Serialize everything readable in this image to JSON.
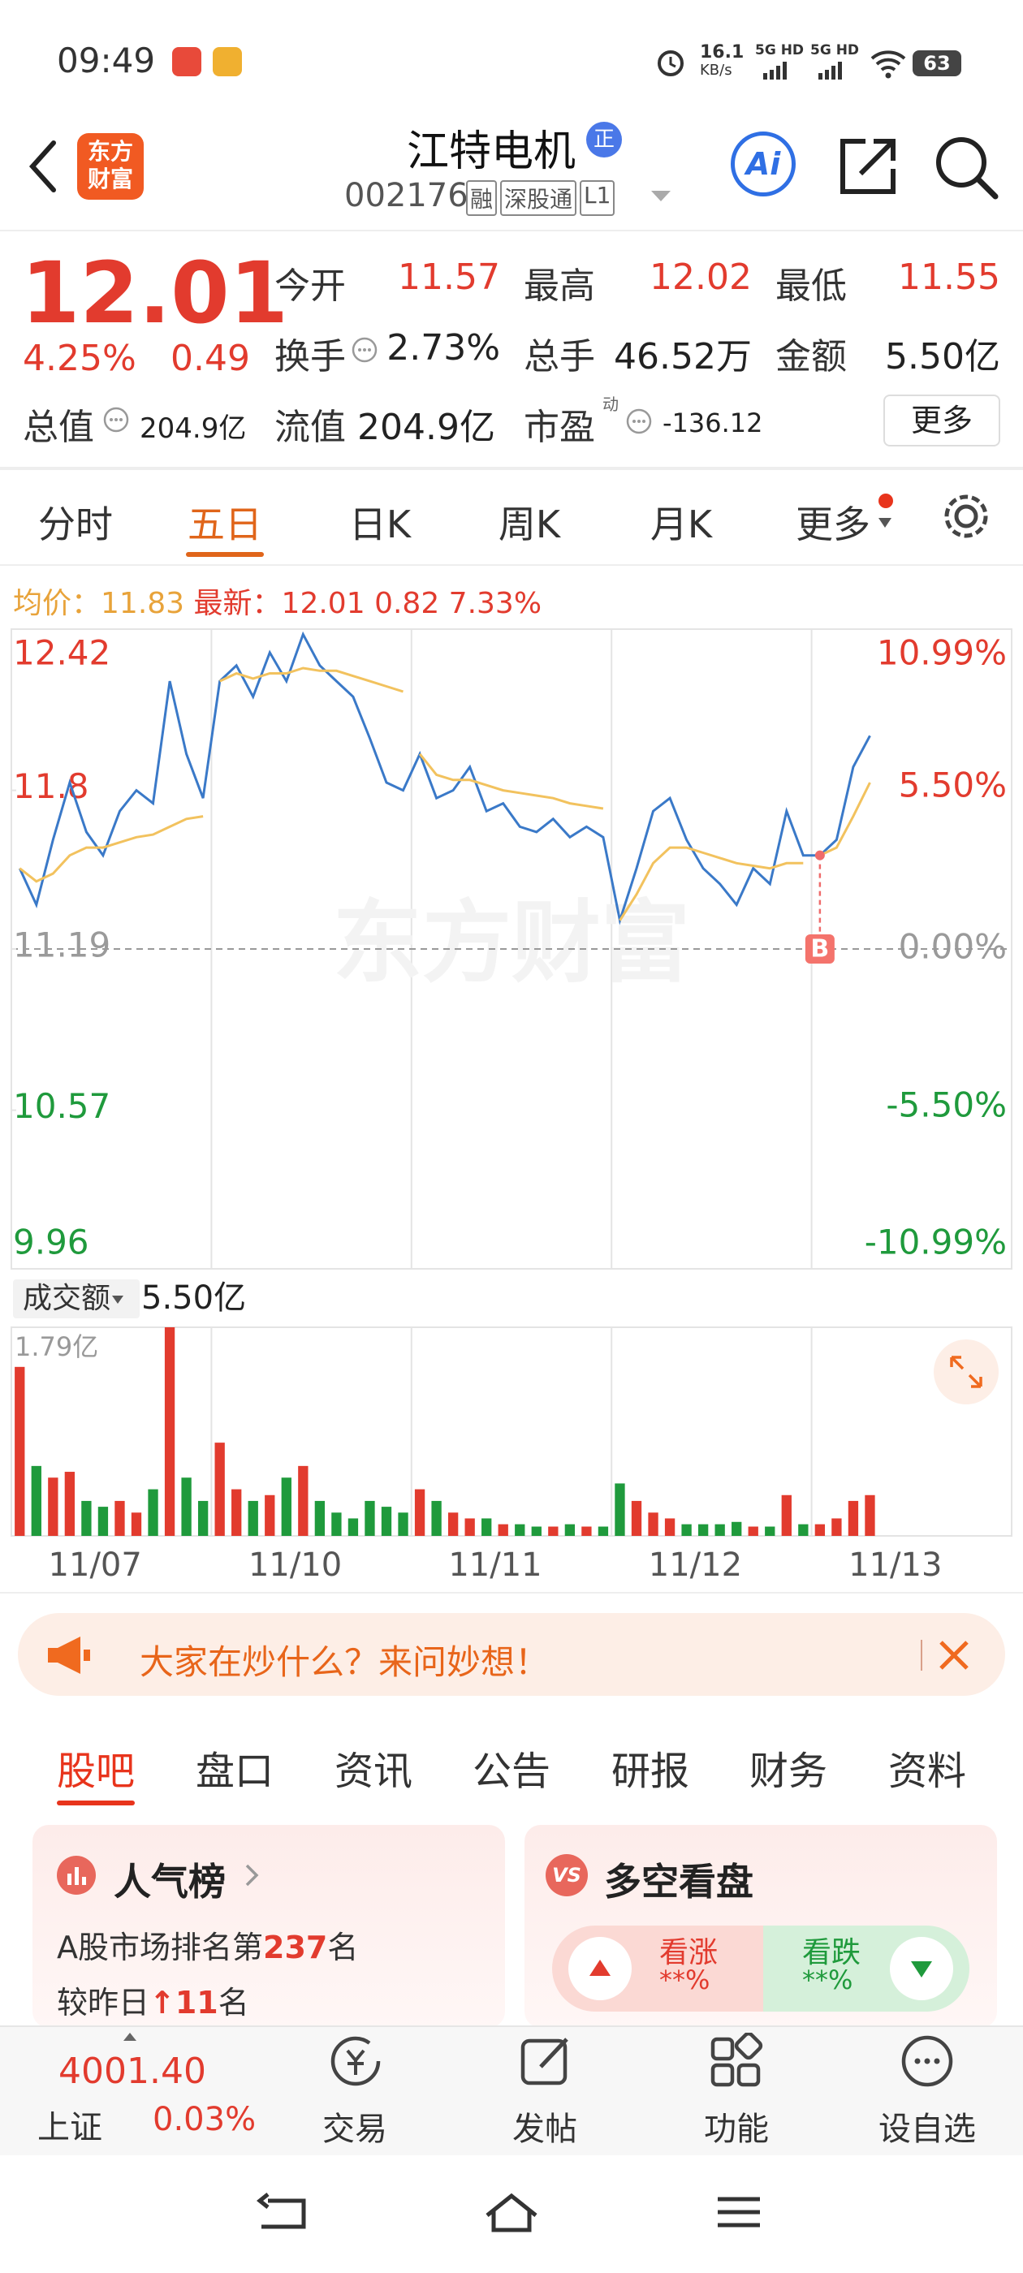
{
  "status_bar": {
    "time": "09:49",
    "net_speed": "16.1",
    "net_unit": "KB/s",
    "signal1": "5G HD",
    "signal2": "5G HD",
    "battery": "63"
  },
  "header": {
    "logo_line1": "东方",
    "logo_line2": "财富",
    "title": "江特电机",
    "badge": "正",
    "code": "002176",
    "tags": [
      "融",
      "深股通",
      "L1"
    ],
    "ai": "Ai"
  },
  "quote": {
    "price": "12.01",
    "change_pct": "4.25%",
    "change": "0.49",
    "rows": [
      [
        {
          "label": "今开",
          "value": "11.57"
        },
        {
          "label": "最高",
          "value": "12.02"
        },
        {
          "label": "最低",
          "value": "11.55"
        }
      ],
      [
        {
          "label": "换手",
          "value": "2.73%"
        },
        {
          "label": "总手",
          "value": "46.52万"
        },
        {
          "label": "金额",
          "value": "5.50亿"
        }
      ]
    ],
    "total_value_label": "总值",
    "total_value": "204.9亿",
    "float_value_label": "流值",
    "float_value": "204.9亿",
    "pe_label": "市盈",
    "pe_sup": "动",
    "pe_value": "-136.12",
    "more": "更多"
  },
  "tabs": {
    "items": [
      "分时",
      "五日",
      "日K",
      "周K",
      "月K",
      "更多"
    ],
    "active": 1
  },
  "chart_info": {
    "avg_label": "均价：",
    "avg": "11.83",
    "latest_label": "最新：",
    "latest": "12.01",
    "change": "0.82",
    "change_pct": "7.33%"
  },
  "chart_data": {
    "type": "line",
    "watermark": "东方财富",
    "ylim": [
      9.96,
      12.42
    ],
    "yticks": [
      12.42,
      11.8,
      11.19,
      10.57,
      9.96
    ],
    "y2lim": [
      -10.99,
      10.99
    ],
    "y2ticks": [
      {
        "value": 10.99,
        "label": "10.99%"
      },
      {
        "value": 5.5,
        "label": "5.50%"
      },
      {
        "value": 0,
        "label": "0.00%"
      },
      {
        "value": -5.5,
        "label": "-5.50%"
      },
      {
        "value": -10.99,
        "label": "-10.99%"
      }
    ],
    "x_labels": [
      "11/07",
      "11/10",
      "11/11",
      "11/12",
      "11/13"
    ],
    "points_per_day": 12,
    "up_color": "#e23b2e",
    "down_color": "#1f9a3c",
    "flat_color": "#9a9a9a",
    "series": [
      {
        "color": "#3a79c8",
        "values": [
          11.5,
          11.36,
          11.61,
          11.83,
          11.64,
          11.55,
          11.72,
          11.8,
          11.75,
          12.22,
          11.94,
          11.77,
          12.22,
          12.28,
          12.16,
          12.33,
          12.22,
          12.4,
          12.28,
          12.22,
          12.16,
          12.0,
          11.83,
          11.8,
          11.94,
          11.77,
          11.8,
          11.89,
          11.72,
          11.75,
          11.66,
          11.64,
          11.69,
          11.62,
          11.66,
          11.62,
          11.3,
          11.5,
          11.72,
          11.77,
          11.61,
          11.5,
          11.44,
          11.36,
          11.5,
          11.44,
          11.72,
          11.55,
          11.55,
          11.61,
          11.89,
          12.01
        ]
      },
      {
        "color": "#f2c25e",
        "values": [
          11.5,
          11.45,
          11.48,
          11.55,
          11.58,
          11.58,
          11.6,
          11.62,
          11.63,
          11.66,
          11.69,
          11.7,
          12.22,
          12.25,
          12.23,
          12.25,
          12.25,
          12.27,
          12.26,
          12.26,
          12.24,
          12.22,
          12.2,
          12.18,
          11.94,
          11.86,
          11.84,
          11.84,
          11.82,
          11.8,
          11.79,
          11.78,
          11.77,
          11.75,
          11.74,
          11.73,
          11.3,
          11.4,
          11.52,
          11.58,
          11.58,
          11.56,
          11.54,
          11.52,
          11.51,
          11.5,
          11.52,
          11.52,
          11.55,
          11.58,
          11.7,
          11.83
        ]
      }
    ],
    "buy_marker": {
      "label": "B",
      "index": 48
    },
    "volume": {
      "label": "成交额",
      "total": "5.50亿",
      "ylim": [
        0,
        1.79
      ],
      "yticks": [
        {
          "value": 1.79,
          "label": "1.79亿"
        }
      ],
      "values": [
        1.45,
        0.6,
        0.5,
        0.55,
        0.3,
        0.25,
        0.3,
        0.2,
        0.4,
        1.79,
        0.5,
        0.3,
        0.8,
        0.4,
        0.3,
        0.35,
        0.5,
        0.6,
        0.3,
        0.2,
        0.15,
        0.3,
        0.25,
        0.2,
        0.4,
        0.3,
        0.2,
        0.15,
        0.15,
        0.1,
        0.1,
        0.08,
        0.08,
        0.1,
        0.08,
        0.08,
        0.45,
        0.3,
        0.2,
        0.15,
        0.1,
        0.1,
        0.1,
        0.12,
        0.08,
        0.08,
        0.35,
        0.1,
        0.1,
        0.15,
        0.3,
        0.35
      ]
    }
  },
  "banner": {
    "text": "大家在炒什么？来问妙想！"
  },
  "sub_tabs": {
    "items": [
      "股吧",
      "盘口",
      "资讯",
      "公告",
      "研报",
      "财务",
      "资料"
    ],
    "active": 0
  },
  "cards": {
    "popularity": {
      "title": "人气榜",
      "rank_prefix": "A股市场排名第",
      "rank": "237",
      "rank_suffix": "名",
      "change_prefix": "较昨日",
      "change_arrow": "↑",
      "change": "11",
      "change_suffix": "名"
    },
    "bull_bear": {
      "icon": "VS",
      "title": "多空看盘",
      "up_label": "看涨",
      "up_value": "**%",
      "down_label": "看跌",
      "down_value": "**%"
    }
  },
  "bottom_nav": {
    "index_value": "4001.40",
    "index_name": "上证",
    "index_change": "0.03%",
    "items": [
      "交易",
      "发帖",
      "功能",
      "设自选"
    ]
  }
}
